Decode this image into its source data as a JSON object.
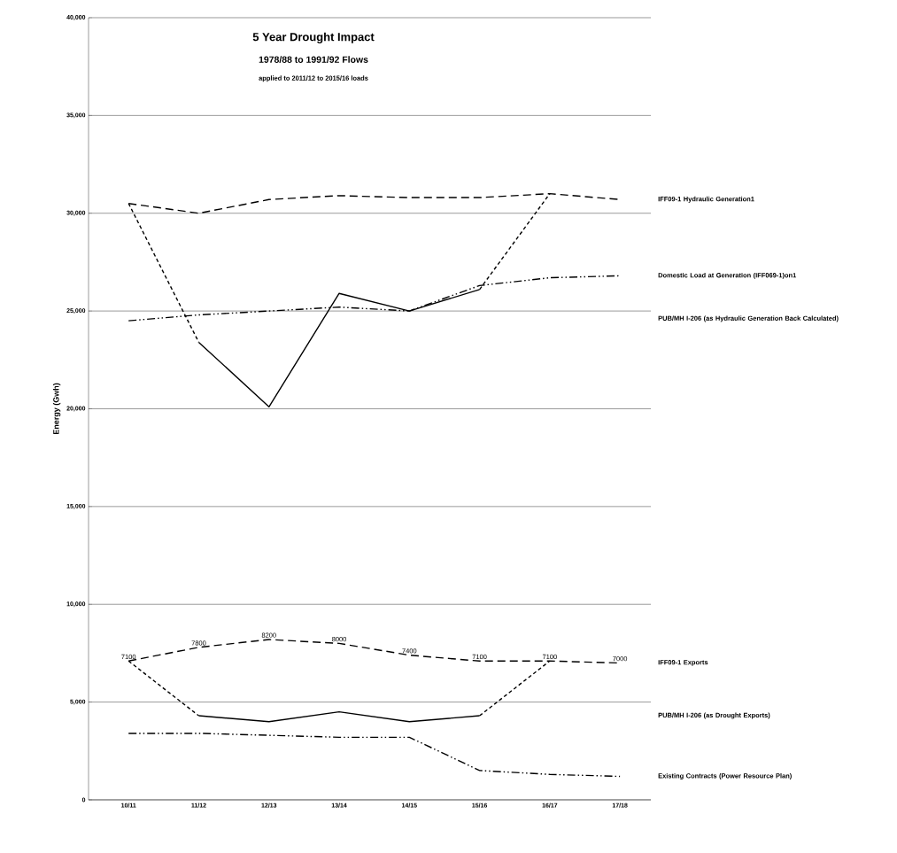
{
  "chart_data": {
    "type": "line",
    "title": "5 Year Drought Impact",
    "subtitle": "1978/88 to 1991/92 Flows",
    "annotations": [
      "applied to 2011/12 to 2015/16 loads"
    ],
    "ylabel": "Energy (Gwh)",
    "categories": [
      "10/11",
      "11/12",
      "12/13",
      "13/14",
      "14/15",
      "15/16",
      "16/17",
      "17/18"
    ],
    "ylim": [
      0,
      40000
    ],
    "yticks": [
      {
        "value": 0,
        "label": "0"
      },
      {
        "value": 5000,
        "label": "5,000"
      },
      {
        "value": 10000,
        "label": "10,000"
      },
      {
        "value": 15000,
        "label": "15,000"
      },
      {
        "value": 20000,
        "label": "20,000"
      },
      {
        "value": 25000,
        "label": "25,000"
      },
      {
        "value": 30000,
        "label": "30,000"
      },
      {
        "value": 35000,
        "label": "35,000"
      },
      {
        "value": 40000,
        "label": "40,000"
      }
    ],
    "grid": "y",
    "marker": "none",
    "series": [
      {
        "name": "IFF09-1 Hydraulic Generation1",
        "color": "#000000",
        "line_style": "dashed",
        "values": [
          30500,
          30000,
          30700,
          30900,
          30800,
          30800,
          31000,
          30700
        ]
      },
      {
        "name": "Domestic Load at Generation (IFF069-1)on1",
        "color": "#000000",
        "line_style": "dashdotdotted",
        "values": [
          24500,
          24800,
          25000,
          25200,
          25000,
          26300,
          26700,
          26800
        ]
      },
      {
        "name": "PUB/MH I-206 (as Hydraulic Generation Back Calculated)",
        "color": "#000000",
        "line_style": "solid",
        "values": [
          null,
          23400,
          20100,
          25900,
          25000,
          26100,
          null,
          null
        ]
      },
      {
        "color": "#000000",
        "line_style": "densely dashed",
        "values": [
          30500,
          23400,
          null,
          null,
          null,
          26100,
          31000,
          null
        ]
      },
      {
        "name": "IFF09-1 Exports",
        "color": "#000000",
        "line_style": "dashed",
        "values": [
          7100,
          7800,
          8200,
          8000,
          7400,
          7100,
          7100,
          7000
        ],
        "value_labels": [
          "7100",
          "7800",
          "8200",
          "8000",
          "7400",
          "7100",
          "7100",
          "7000"
        ]
      },
      {
        "name": "PUB/MH I-206 (as Drought Exports)",
        "color": "#000000",
        "line_style": "solid",
        "values": [
          null,
          4300,
          4000,
          4500,
          4000,
          4300,
          null,
          null
        ]
      },
      {
        "color": "#000000",
        "line_style": "densely dashed",
        "values": [
          7100,
          4300,
          null,
          null,
          null,
          4300,
          7100,
          null
        ]
      },
      {
        "name": "Existing Contracts (Power Resource Plan)",
        "color": "#000000",
        "line_style": "dashdotdotted",
        "values": [
          3400,
          3400,
          3300,
          3200,
          3200,
          1500,
          1300,
          1200
        ]
      }
    ]
  }
}
